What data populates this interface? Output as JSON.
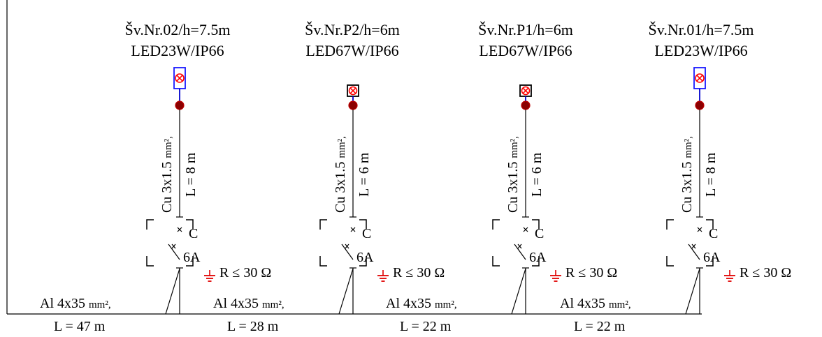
{
  "units": [
    {
      "title": "Šv.Nr.02/h=7.5m",
      "lamp": "LED23W/IP66",
      "lamp_kind": "box",
      "cable_a": "Cu 3x1.5 ",
      "cable_unit": "mm²,",
      "cable_len": "L = 8 m",
      "breaker_char": "C",
      "breaker_rating": "6A",
      "ground": "R ≤ 30 Ω",
      "feed_a": "Al 4x35 ",
      "feed_unit": "mm²,",
      "feed_len": "L = 47 m"
    },
    {
      "title": "Šv.Nr.P2/h=6m",
      "lamp": "LED67W/IP66",
      "lamp_kind": "small",
      "cable_a": "Cu 3x1.5 ",
      "cable_unit": "mm²,",
      "cable_len": "L = 6 m",
      "breaker_char": "C",
      "breaker_rating": "6A",
      "ground": "R ≤ 30 Ω",
      "feed_a": "Al 4x35 ",
      "feed_unit": "mm²,",
      "feed_len": "L = 28 m"
    },
    {
      "title": "Šv.Nr.P1/h=6m",
      "lamp": "LED67W/IP66",
      "lamp_kind": "small",
      "cable_a": "Cu 3x1.5 ",
      "cable_unit": "mm²,",
      "cable_len": "L = 6 m",
      "breaker_char": "C",
      "breaker_rating": "6A",
      "ground": "R ≤ 30 Ω",
      "feed_a": "Al 4x35 ",
      "feed_unit": "mm²,",
      "feed_len": "L = 22 m"
    },
    {
      "title": "Šv.Nr.01/h=7.5m",
      "lamp": "LED23W/IP66",
      "lamp_kind": "box",
      "cable_a": "Cu 3x1.5 ",
      "cable_unit": "mm²,",
      "cable_len": "L = 8 m",
      "breaker_char": "C",
      "breaker_rating": "6A",
      "ground": "R ≤ 30 Ω",
      "feed_a": "Al 4x35 ",
      "feed_unit": "mm²,",
      "feed_len": "L = 22 m"
    }
  ],
  "colors": {
    "line": "#000000",
    "lamp_box": "#1a1aff",
    "lamp_symbol": "#ff0000",
    "node_fill": "#8b0000",
    "node_stroke": "#c00000",
    "wire_blue": "#0000cc",
    "ground": "#e00000"
  }
}
